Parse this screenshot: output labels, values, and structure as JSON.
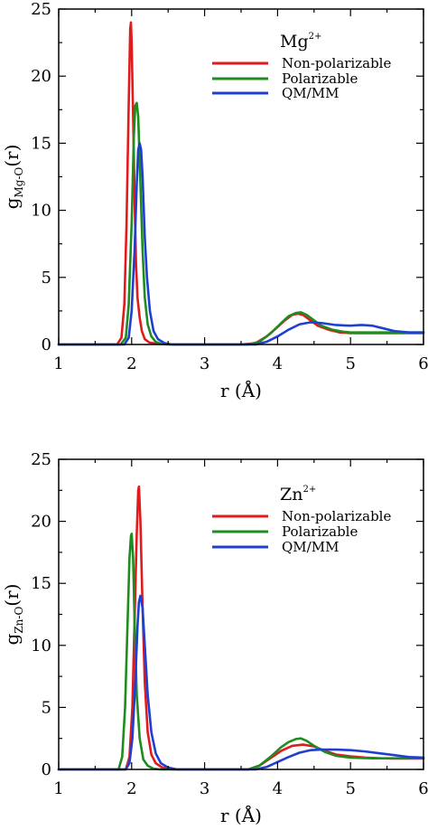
{
  "chart_data": [
    {
      "type": "line",
      "title": "",
      "annotation": {
        "base": "Mg",
        "sup": "2+"
      },
      "xlabel": "r (Å)",
      "ylabel": {
        "base": "g",
        "sub": "Mg-O",
        "suffix": "(r)"
      },
      "xlim": [
        1,
        6
      ],
      "ylim": [
        0,
        25
      ],
      "xticks": [
        1,
        2,
        3,
        4,
        5,
        6
      ],
      "yticks": [
        0,
        5,
        10,
        15,
        20,
        25
      ],
      "legend_placement": "top-right",
      "series": [
        {
          "name": "Non-polarizable",
          "color": "#e31a1c",
          "x": [
            1.0,
            1.8,
            1.86,
            1.9,
            1.93,
            1.96,
            1.98,
            1.99,
            2.0,
            2.02,
            2.04,
            2.06,
            2.08,
            2.11,
            2.14,
            2.18,
            2.24,
            2.35,
            2.6,
            3.5,
            3.7,
            3.85,
            4.0,
            4.1,
            4.2,
            4.28,
            4.35,
            4.45,
            4.55,
            4.7,
            4.85,
            5.0,
            5.3,
            5.6,
            5.8,
            6.0
          ],
          "y": [
            0,
            0,
            0.5,
            3,
            9,
            18,
            23.5,
            24.0,
            22.5,
            17,
            11,
            6,
            3.5,
            2,
            1,
            0.4,
            0.15,
            0.05,
            0,
            0,
            0.1,
            0.6,
            1.3,
            1.8,
            2.2,
            2.3,
            2.2,
            1.8,
            1.4,
            1.1,
            0.9,
            0.85,
            0.85,
            0.85,
            0.85,
            0.85
          ]
        },
        {
          "name": "Polarizable",
          "color": "#1e8c1e",
          "x": [
            1.0,
            1.85,
            1.92,
            1.96,
            2.0,
            2.03,
            2.05,
            2.07,
            2.09,
            2.12,
            2.15,
            2.18,
            2.22,
            2.27,
            2.33,
            2.4,
            2.5,
            3.6,
            3.75,
            3.9,
            4.05,
            4.15,
            4.25,
            4.32,
            4.4,
            4.5,
            4.6,
            4.75,
            4.9,
            5.0,
            5.3,
            5.6,
            6.0
          ],
          "y": [
            0,
            0,
            0.5,
            3,
            9,
            15.5,
            17.8,
            18.0,
            17,
            12,
            7,
            3.5,
            1.5,
            0.6,
            0.2,
            0.05,
            0,
            0,
            0.2,
            0.8,
            1.6,
            2.1,
            2.35,
            2.4,
            2.2,
            1.8,
            1.4,
            1.1,
            0.95,
            0.9,
            0.9,
            0.9,
            0.9
          ]
        },
        {
          "name": "QM/MM",
          "color": "#1f3fd1",
          "x": [
            1.0,
            1.9,
            1.96,
            2.0,
            2.04,
            2.07,
            2.09,
            2.11,
            2.13,
            2.15,
            2.18,
            2.21,
            2.25,
            2.3,
            2.36,
            2.45,
            2.55,
            3.7,
            3.85,
            4.0,
            4.15,
            4.3,
            4.45,
            4.6,
            4.8,
            5.0,
            5.15,
            5.3,
            5.45,
            5.6,
            5.8,
            6.0
          ],
          "y": [
            0,
            0,
            0.5,
            2.5,
            7,
            12,
            14.5,
            15.0,
            14.5,
            12.5,
            8,
            5,
            2.5,
            1.0,
            0.4,
            0.1,
            0,
            0,
            0.2,
            0.6,
            1.1,
            1.5,
            1.65,
            1.6,
            1.45,
            1.4,
            1.45,
            1.4,
            1.2,
            1.0,
            0.9,
            0.9
          ]
        }
      ]
    },
    {
      "type": "line",
      "title": "",
      "annotation": {
        "base": "Zn",
        "sup": "2+"
      },
      "xlabel": "r (Å)",
      "ylabel": {
        "base": "g",
        "sub": "Zn-O",
        "suffix": "(r)"
      },
      "xlim": [
        1,
        6
      ],
      "ylim": [
        0,
        25
      ],
      "xticks": [
        1,
        2,
        3,
        4,
        5,
        6
      ],
      "yticks": [
        0,
        5,
        10,
        15,
        20,
        25
      ],
      "legend_placement": "top-right",
      "series": [
        {
          "name": "Non-polarizable",
          "color": "#e31a1c",
          "x": [
            1.0,
            1.92,
            1.97,
            2.01,
            2.04,
            2.07,
            2.09,
            2.1,
            2.12,
            2.15,
            2.18,
            2.22,
            2.27,
            2.33,
            2.42,
            2.55,
            3.6,
            3.75,
            3.9,
            4.05,
            4.2,
            4.35,
            4.5,
            4.65,
            4.8,
            5.0,
            5.2,
            5.4,
            5.6,
            5.8,
            6.0
          ],
          "y": [
            0,
            0,
            1,
            5,
            12,
            19,
            22.5,
            22.8,
            20,
            13,
            7,
            3,
            1.2,
            0.5,
            0.15,
            0,
            0,
            0.3,
            0.9,
            1.5,
            1.9,
            2.0,
            1.85,
            1.5,
            1.2,
            1.05,
            0.95,
            0.9,
            0.88,
            0.88,
            0.88
          ]
        },
        {
          "name": "Polarizable",
          "color": "#1e8c1e",
          "x": [
            1.0,
            1.82,
            1.87,
            1.91,
            1.94,
            1.97,
            1.99,
            2.0,
            2.02,
            2.04,
            2.07,
            2.11,
            2.16,
            2.22,
            2.3,
            2.4,
            3.6,
            3.75,
            3.9,
            4.05,
            4.15,
            4.25,
            4.32,
            4.4,
            4.5,
            4.65,
            4.8,
            5.0,
            5.3,
            5.6,
            6.0
          ],
          "y": [
            0,
            0,
            1,
            5,
            11,
            17,
            18.8,
            19.0,
            17,
            12,
            6,
            2.5,
            0.8,
            0.3,
            0.05,
            0,
            0,
            0.3,
            1.0,
            1.8,
            2.2,
            2.45,
            2.5,
            2.3,
            1.9,
            1.4,
            1.1,
            0.95,
            0.9,
            0.9,
            0.9
          ]
        },
        {
          "name": "QM/MM",
          "color": "#1f3fd1",
          "x": [
            1.0,
            1.92,
            1.97,
            2.01,
            2.05,
            2.08,
            2.1,
            2.12,
            2.15,
            2.18,
            2.22,
            2.27,
            2.33,
            2.4,
            2.5,
            2.62,
            3.7,
            3.85,
            4.0,
            4.15,
            4.3,
            4.45,
            4.6,
            4.8,
            5.0,
            5.2,
            5.4,
            5.6,
            5.8,
            6.0
          ],
          "y": [
            0,
            0,
            0.5,
            2.5,
            7,
            11.5,
            13.5,
            14.0,
            13,
            10,
            6,
            3,
            1.3,
            0.5,
            0.15,
            0,
            0,
            0.2,
            0.6,
            1.0,
            1.35,
            1.55,
            1.6,
            1.6,
            1.55,
            1.45,
            1.3,
            1.15,
            1.0,
            0.95
          ]
        }
      ]
    }
  ]
}
